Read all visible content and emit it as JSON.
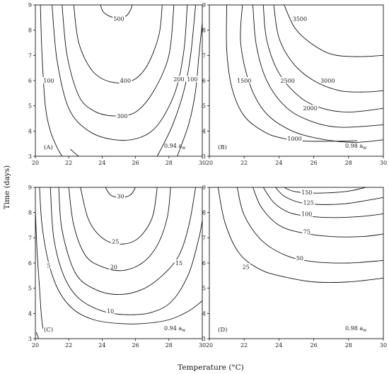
{
  "figure": {
    "xlabel": "Temperature (°C)",
    "ylabel": "Time (days)"
  },
  "chart_data": [
    {
      "type": "contour",
      "panel_label": "(A)",
      "aw_label": "0.94 a",
      "aw_sub": "w",
      "xlim": [
        20,
        30
      ],
      "ylim": [
        3,
        9
      ],
      "xticks": [
        "20",
        "22",
        "24",
        "26",
        "28",
        "30"
      ],
      "yticks": [
        "3",
        "4",
        "5",
        "6",
        "7",
        "8",
        "9"
      ],
      "levels": [
        {
          "label": "500",
          "label_at": [
            25.0,
            8.45
          ],
          "points": [
            [
              23.9,
              9
            ],
            [
              24.1,
              8.7
            ],
            [
              24.7,
              8.5
            ],
            [
              25.4,
              8.55
            ],
            [
              25.7,
              8.8
            ],
            [
              25.8,
              9
            ]
          ]
        },
        {
          "label": "400",
          "label_at": [
            25.4,
            6.0
          ],
          "points": [
            [
              22.3,
              9
            ],
            [
              22.6,
              7.5
            ],
            [
              23.4,
              6.4
            ],
            [
              24.5,
              5.95
            ],
            [
              25.8,
              6.0
            ],
            [
              26.7,
              6.6
            ],
            [
              27.4,
              7.8
            ],
            [
              27.6,
              9
            ]
          ]
        },
        {
          "label": "300",
          "label_at": [
            25.2,
            4.6
          ],
          "points": [
            [
              21.6,
              9
            ],
            [
              21.9,
              7
            ],
            [
              22.6,
              5.4
            ],
            [
              23.5,
              4.8
            ],
            [
              24.7,
              4.6
            ],
            [
              26.0,
              4.75
            ],
            [
              27.1,
              5.6
            ],
            [
              28.0,
              7
            ],
            [
              28.3,
              9
            ]
          ]
        },
        {
          "label": "",
          "label_at": null,
          "points": [
            [
              21.0,
              9
            ],
            [
              21.3,
              6.8
            ],
            [
              22.0,
              4.9
            ],
            [
              23.2,
              4.0
            ],
            [
              24.8,
              3.65
            ],
            [
              26.3,
              3.75
            ],
            [
              27.4,
              4.3
            ],
            [
              28.4,
              5.6
            ],
            [
              28.9,
              7.2
            ],
            [
              29.1,
              9
            ]
          ]
        },
        {
          "label": "200",
          "label_at": [
            28.6,
            6.05
          ],
          "points": [
            [
              27.3,
              3
            ],
            [
              28.2,
              4.2
            ],
            [
              28.9,
              5.6
            ],
            [
              29.3,
              7
            ],
            [
              29.6,
              9
            ]
          ]
        },
        {
          "label": "100",
          "label_at": [
            20.8,
            6.0
          ],
          "points": [
            [
              20.3,
              9
            ],
            [
              20.4,
              7
            ],
            [
              20.6,
              5
            ],
            [
              20.9,
              4
            ],
            [
              21.3,
              3.35
            ],
            [
              21.6,
              3
            ]
          ]
        },
        {
          "label": "100",
          "label_at": [
            29.4,
            6.05
          ],
          "points": [
            [
              28.5,
              3
            ],
            [
              29.2,
              4.3
            ],
            [
              29.6,
              5.6
            ],
            [
              29.8,
              7
            ],
            [
              30,
              8.3
            ]
          ]
        },
        {
          "label": "",
          "label_at": null,
          "points": [
            [
              22.1,
              3.28
            ],
            [
              22.4,
              3.1
            ],
            [
              22.6,
              3
            ]
          ]
        }
      ]
    },
    {
      "type": "contour",
      "panel_label": "(B)",
      "aw_label": "0.98 a",
      "aw_sub": "w",
      "xlim": [
        20,
        30
      ],
      "ylim": [
        3,
        9
      ],
      "xticks": [
        "20",
        "22",
        "24",
        "26",
        "28",
        "30"
      ],
      "yticks": [
        "3",
        "4",
        "5",
        "6",
        "7",
        "8",
        "9"
      ],
      "levels": [
        {
          "label": "3500",
          "label_at": [
            25.2,
            8.45
          ],
          "points": [
            [
              24.3,
              9
            ],
            [
              24.9,
              8.1
            ],
            [
              25.8,
              7.5
            ],
            [
              27.0,
              7.05
            ],
            [
              28.5,
              6.95
            ],
            [
              30,
              7.0
            ]
          ]
        },
        {
          "label": "3000",
          "label_at": [
            26.8,
            6.0
          ],
          "points": [
            [
              23.7,
              9
            ],
            [
              24.0,
              7.7
            ],
            [
              24.8,
              6.7
            ],
            [
              26.0,
              6.0
            ],
            [
              27.5,
              5.6
            ],
            [
              29.0,
              5.55
            ],
            [
              30,
              5.6
            ]
          ]
        },
        {
          "label": "2500",
          "label_at": [
            24.5,
            6.0
          ],
          "points": [
            [
              23.1,
              9
            ],
            [
              23.3,
              7.6
            ],
            [
              24.0,
              6.3
            ],
            [
              25.2,
              5.35
            ],
            [
              26.5,
              4.9
            ],
            [
              28.0,
              4.75
            ],
            [
              30,
              4.9
            ]
          ]
        },
        {
          "label": "2000",
          "label_at": [
            25.8,
            4.9
          ],
          "points": [
            [
              22.5,
              9
            ],
            [
              22.7,
              7.4
            ],
            [
              23.3,
              6.0
            ],
            [
              24.4,
              4.95
            ],
            [
              25.8,
              4.4
            ],
            [
              27.5,
              4.15
            ],
            [
              30,
              4.25
            ]
          ]
        },
        {
          "label": "1500",
          "label_at": [
            22.0,
            6.0
          ],
          "points": [
            [
              21.9,
              9
            ],
            [
              21.8,
              7.5
            ],
            [
              22.3,
              5.9
            ],
            [
              23.2,
              4.75
            ],
            [
              24.6,
              4.05
            ],
            [
              26.3,
              3.7
            ],
            [
              28.3,
              3.55
            ],
            [
              30,
              3.65
            ]
          ]
        },
        {
          "label": "1000",
          "label_at": [
            24.9,
            3.7
          ],
          "points": [
            [
              21.0,
              9
            ],
            [
              21.0,
              7.2
            ],
            [
              21.3,
              5.7
            ],
            [
              22.0,
              4.6
            ],
            [
              23.2,
              3.95
            ],
            [
              24.3,
              3.7
            ],
            [
              25.5,
              3.6
            ],
            [
              27.5,
              3.6
            ],
            [
              28.5,
              3.62
            ]
          ]
        }
      ]
    },
    {
      "type": "contour",
      "panel_label": "(C)",
      "aw_label": "0.94 a",
      "aw_sub": "w",
      "xlim": [
        20,
        30
      ],
      "ylim": [
        3,
        9
      ],
      "xticks": [
        "20",
        "22",
        "24",
        "26",
        "28",
        "30"
      ],
      "yticks": [
        "3",
        "4",
        "5",
        "6",
        "7",
        "8",
        "9"
      ],
      "levels": [
        {
          "label": "30",
          "label_at": [
            25.1,
            8.65
          ],
          "points": [
            [
              24.2,
              9
            ],
            [
              24.5,
              8.7
            ],
            [
              25.1,
              8.6
            ],
            [
              25.7,
              8.7
            ],
            [
              26.0,
              9
            ]
          ]
        },
        {
          "label": "25",
          "label_at": [
            24.8,
            6.85
          ],
          "points": [
            [
              22.7,
              9
            ],
            [
              23.2,
              7.7
            ],
            [
              24.1,
              6.95
            ],
            [
              25.2,
              6.75
            ],
            [
              26.2,
              7.0
            ],
            [
              27.0,
              7.8
            ],
            [
              27.3,
              9
            ]
          ]
        },
        {
          "label": "20",
          "label_at": [
            24.7,
            5.85
          ],
          "points": [
            [
              22.0,
              9
            ],
            [
              22.3,
              7.5
            ],
            [
              23.0,
              6.3
            ],
            [
              24.0,
              5.85
            ],
            [
              25.2,
              5.7
            ],
            [
              26.4,
              6.0
            ],
            [
              27.3,
              6.7
            ],
            [
              27.9,
              7.8
            ],
            [
              28.1,
              9
            ]
          ]
        },
        {
          "label": "15",
          "label_at": [
            28.6,
            6.0
          ],
          "points": [
            [
              21.4,
              9
            ],
            [
              21.6,
              7.3
            ],
            [
              22.4,
              5.6
            ],
            [
              23.6,
              4.95
            ],
            [
              25.0,
              4.75
            ],
            [
              26.4,
              4.95
            ],
            [
              27.6,
              5.5
            ],
            [
              28.6,
              6.3
            ],
            [
              29.2,
              7.5
            ],
            [
              29.6,
              9
            ]
          ]
        },
        {
          "label": "10",
          "label_at": [
            24.5,
            4.1
          ],
          "points": [
            [
              20.9,
              9
            ],
            [
              21.1,
              7
            ],
            [
              21.7,
              5.5
            ],
            [
              22.6,
              4.6
            ],
            [
              24.0,
              4.1
            ],
            [
              25.5,
              3.95
            ],
            [
              27.0,
              4.05
            ],
            [
              28.2,
              4.5
            ],
            [
              29.2,
              5.6
            ],
            [
              29.8,
              7.0
            ],
            [
              30,
              7.7
            ]
          ]
        },
        {
          "label": "5",
          "label_at": [
            20.8,
            5.9
          ],
          "points": [
            [
              20.25,
              9
            ],
            [
              20.4,
              7.5
            ],
            [
              20.8,
              6.0
            ],
            [
              21.4,
              4.9
            ],
            [
              22.3,
              4.15
            ],
            [
              23.5,
              3.75
            ],
            [
              25.0,
              3.6
            ],
            [
              26.5,
              3.6
            ],
            [
              28.0,
              3.75
            ],
            [
              29.2,
              4.1
            ],
            [
              30,
              4.5
            ]
          ]
        },
        {
          "label": "",
          "label_at": null,
          "points": [
            [
              20,
              8.1
            ],
            [
              20.1,
              6.5
            ],
            [
              20.25,
              5.0
            ],
            [
              20.35,
              4.0
            ],
            [
              20.45,
              3.4
            ]
          ]
        },
        {
          "label": "",
          "label_at": null,
          "points": [
            [
              20.05,
              3.25
            ],
            [
              20.2,
              3.0
            ]
          ]
        }
      ]
    },
    {
      "type": "contour",
      "panel_label": "(D)",
      "aw_label": "0.98 a",
      "aw_sub": "w",
      "xlim": [
        20,
        30
      ],
      "ylim": [
        3,
        9
      ],
      "xticks": [
        "20",
        "22",
        "24",
        "26",
        "28",
        "30"
      ],
      "yticks": [
        "3",
        "4",
        "5",
        "6",
        "7",
        "8",
        "9"
      ],
      "levels": [
        {
          "label": "150",
          "label_at": [
            25.6,
            8.8
          ],
          "points": [
            [
              24.3,
              9
            ],
            [
              24.8,
              8.85
            ],
            [
              25.6,
              8.78
            ],
            [
              26.8,
              8.78
            ],
            [
              28.0,
              8.85
            ],
            [
              29.0,
              9
            ]
          ]
        },
        {
          "label": "125",
          "label_at": [
            25.7,
            8.4
          ],
          "points": [
            [
              23.8,
              9
            ],
            [
              24.3,
              8.65
            ],
            [
              25.2,
              8.4
            ],
            [
              26.4,
              8.32
            ],
            [
              27.8,
              8.35
            ],
            [
              29.2,
              8.5
            ],
            [
              30,
              8.6
            ]
          ]
        },
        {
          "label": "100",
          "label_at": [
            25.6,
            7.95
          ],
          "points": [
            [
              23.1,
              9
            ],
            [
              23.7,
              8.4
            ],
            [
              24.6,
              8.0
            ],
            [
              25.8,
              7.85
            ],
            [
              27.2,
              7.8
            ],
            [
              28.8,
              7.85
            ],
            [
              30,
              7.95
            ]
          ]
        },
        {
          "label": "75",
          "label_at": [
            25.6,
            7.25
          ],
          "points": [
            [
              22.5,
              9
            ],
            [
              23.0,
              8.2
            ],
            [
              24.0,
              7.5
            ],
            [
              25.3,
              7.2
            ],
            [
              27.0,
              7.05
            ],
            [
              28.8,
              7.05
            ],
            [
              30,
              7.15
            ]
          ]
        },
        {
          "label": "50",
          "label_at": [
            25.2,
            6.2
          ],
          "points": [
            [
              21.6,
              9
            ],
            [
              22.0,
              7.9
            ],
            [
              23.0,
              6.9
            ],
            [
              24.4,
              6.3
            ],
            [
              26.0,
              6.05
            ],
            [
              28.0,
              6.0
            ],
            [
              30,
              6.1
            ]
          ]
        },
        {
          "label": "25",
          "label_at": [
            22.1,
            5.85
          ],
          "points": [
            [
              20.5,
              9
            ],
            [
              20.9,
              7.6
            ],
            [
              21.7,
              6.4
            ],
            [
              22.9,
              5.75
            ],
            [
              24.3,
              5.45
            ],
            [
              26.0,
              5.25
            ],
            [
              28.0,
              5.25
            ],
            [
              30,
              5.4
            ]
          ]
        }
      ]
    }
  ]
}
